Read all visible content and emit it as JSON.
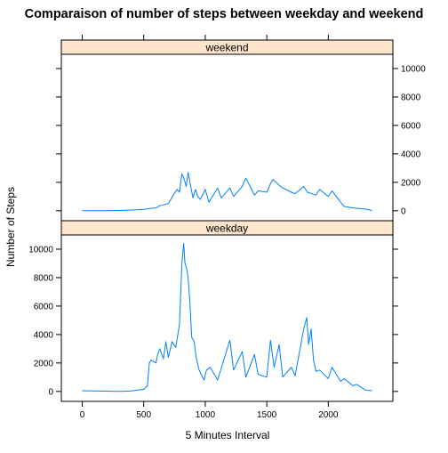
{
  "chart_data": {
    "type": "line",
    "title": "Comparaison of number of steps between weekday and weekend",
    "xlabel": "5 Minutes Interval",
    "ylabel": "Number of Steps",
    "xlim": [
      -170,
      2525
    ],
    "ylim": [
      -700,
      11000
    ],
    "x_ticks": [
      0,
      500,
      1000,
      1500,
      2000
    ],
    "y_ticks": [
      0,
      2000,
      4000,
      6000,
      8000,
      10000
    ],
    "grid": false,
    "layout": "two stacked panels with shared x axis; weekday bottom, weekend top",
    "line_color": "#0080ff",
    "strip_color": "#ffe5cc",
    "panels": [
      {
        "name": "weekend",
        "tick_side": "right",
        "x": [
          0,
          100,
          200,
          300,
          400,
          500,
          545,
          600,
          630,
          700,
          740,
          770,
          790,
          810,
          830,
          845,
          860,
          880,
          900,
          920,
          940,
          960,
          1000,
          1030,
          1100,
          1130,
          1200,
          1230,
          1300,
          1330,
          1400,
          1430,
          1500,
          1530,
          1550,
          1600,
          1630,
          1700,
          1730,
          1800,
          1830,
          1900,
          1930,
          2000,
          2030,
          2100,
          2130,
          2200,
          2300,
          2355
        ],
        "values": [
          0,
          5,
          10,
          20,
          50,
          100,
          160,
          200,
          350,
          500,
          1100,
          1500,
          1300,
          2600,
          2200,
          1700,
          2700,
          1800,
          900,
          1500,
          1000,
          800,
          1500,
          600,
          1600,
          900,
          1600,
          1000,
          1700,
          2300,
          1100,
          1400,
          1300,
          1900,
          2200,
          1800,
          1600,
          1300,
          1200,
          1700,
          1300,
          1100,
          1500,
          1000,
          1400,
          600,
          300,
          200,
          120,
          20
        ]
      },
      {
        "name": "weekday",
        "tick_side": "left",
        "x": [
          0,
          100,
          200,
          300,
          400,
          500,
          530,
          545,
          560,
          600,
          610,
          630,
          660,
          680,
          700,
          730,
          760,
          790,
          810,
          825,
          835,
          850,
          860,
          875,
          890,
          910,
          925,
          950,
          990,
          1010,
          1040,
          1100,
          1200,
          1230,
          1300,
          1330,
          1400,
          1430,
          1500,
          1530,
          1560,
          1600,
          1630,
          1700,
          1730,
          1800,
          1825,
          1840,
          1860,
          1880,
          1900,
          1930,
          2000,
          2030,
          2100,
          2130,
          2200,
          2230,
          2300,
          2355
        ],
        "values": [
          50,
          30,
          20,
          10,
          40,
          150,
          400,
          2000,
          2200,
          2000,
          2500,
          3000,
          2300,
          3500,
          2400,
          3500,
          3100,
          4700,
          9000,
          10400,
          9000,
          8600,
          8000,
          6300,
          3800,
          3500,
          2400,
          1500,
          800,
          1500,
          1700,
          800,
          3600,
          1500,
          2800,
          1000,
          2600,
          1200,
          1000,
          3600,
          1700,
          3300,
          1000,
          1700,
          1100,
          4400,
          5200,
          3300,
          4400,
          2200,
          1400,
          1500,
          900,
          1700,
          700,
          900,
          400,
          500,
          100,
          50
        ]
      }
    ]
  }
}
